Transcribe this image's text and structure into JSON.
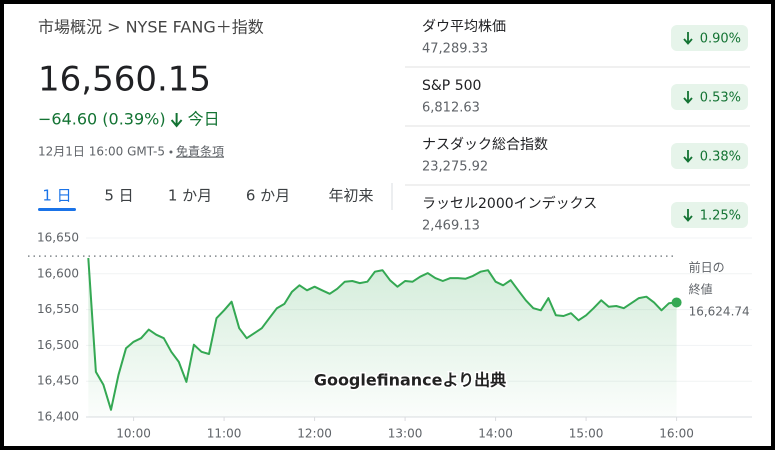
{
  "breadcrumb": "市場概況 > NYSE FANG＋指数",
  "price": "16,560.15",
  "change": "−64.60 (0.39%)",
  "period": "今日",
  "timestamp": "12月1日 16:00 GMT-5",
  "disclaimer": "免責条項",
  "tabs": [
    "1 日",
    "5 日",
    "1 か月",
    "6 か月",
    "年初来"
  ],
  "indices": [
    {
      "name": "ダウ平均株価",
      "value": "47,289.33",
      "change": "0.90%"
    },
    {
      "name": "S&P 500",
      "value": "6,812.63",
      "change": "0.53%"
    },
    {
      "name": "ナスダック総合指数",
      "value": "23,275.92",
      "change": "0.38%"
    },
    {
      "name": "ラッセル2000インデックス",
      "value": "2,469.13",
      "change": "1.25%"
    }
  ],
  "source_note": "Googlefinanceより出典",
  "chart_data": {
    "type": "line",
    "x": [
      "9:30",
      "9:35",
      "9:40",
      "9:45",
      "9:50",
      "9:55",
      "10:00",
      "10:05",
      "10:10",
      "10:15",
      "10:20",
      "10:25",
      "10:30",
      "10:35",
      "10:40",
      "10:45",
      "10:50",
      "10:55",
      "11:00",
      "11:05",
      "11:10",
      "11:15",
      "11:20",
      "11:25",
      "11:30",
      "11:35",
      "11:40",
      "11:45",
      "11:50",
      "11:55",
      "12:00",
      "12:05",
      "12:10",
      "12:15",
      "12:20",
      "12:25",
      "12:30",
      "12:35",
      "12:40",
      "12:45",
      "12:50",
      "12:55",
      "13:00",
      "13:05",
      "13:10",
      "13:15",
      "13:20",
      "13:25",
      "13:30",
      "13:35",
      "13:40",
      "13:45",
      "13:50",
      "13:55",
      "14:00",
      "14:05",
      "14:10",
      "14:15",
      "14:20",
      "14:25",
      "14:30",
      "14:35",
      "14:40",
      "14:45",
      "14:50",
      "14:55",
      "15:00",
      "15:05",
      "15:10",
      "15:15",
      "15:20",
      "15:25",
      "15:30",
      "15:35",
      "15:40",
      "15:45",
      "15:50",
      "15:55",
      "16:00"
    ],
    "series": [
      {
        "color": "#34a853",
        "values": [
          16622,
          16463,
          16445,
          16410,
          16459,
          16496,
          16505,
          16510,
          16522,
          16515,
          16510,
          16491,
          16477,
          16449,
          16501,
          16491,
          16488,
          16538,
          16549,
          16561,
          16524,
          16510,
          16517,
          16524,
          16538,
          16552,
          16558,
          16575,
          16584,
          16577,
          16582,
          16577,
          16572,
          16579,
          16589,
          16590,
          16587,
          16589,
          16603,
          16605,
          16591,
          16582,
          16590,
          16589,
          16596,
          16601,
          16594,
          16590,
          16594,
          16594,
          16593,
          16597,
          16603,
          16605,
          16589,
          16584,
          16591,
          16577,
          16563,
          16552,
          16549,
          16566,
          16542,
          16541,
          16545,
          16535,
          16542,
          16552,
          16563,
          16554,
          16555,
          16552,
          16559,
          16566,
          16568,
          16560,
          16549,
          16559,
          16560
        ]
      }
    ],
    "xlim": [
      "8:50",
      "16:50"
    ],
    "xticks": [
      "10:00",
      "11:00",
      "12:00",
      "13:00",
      "14:00",
      "15:00",
      "16:00"
    ],
    "ylim": [
      16400,
      16650
    ],
    "yticks": [
      {
        "value": 16400,
        "label": "16,400"
      },
      {
        "value": 16450,
        "label": "16,450"
      },
      {
        "value": 16500,
        "label": "16,500"
      },
      {
        "value": 16550,
        "label": "16,550"
      },
      {
        "value": 16600,
        "label": "16,600"
      },
      {
        "value": 16650,
        "label": "16,650"
      }
    ],
    "previous_close": {
      "value": 16624.74,
      "label": "16,624.74",
      "title": [
        "前日の",
        "終値"
      ]
    },
    "grid": true
  }
}
